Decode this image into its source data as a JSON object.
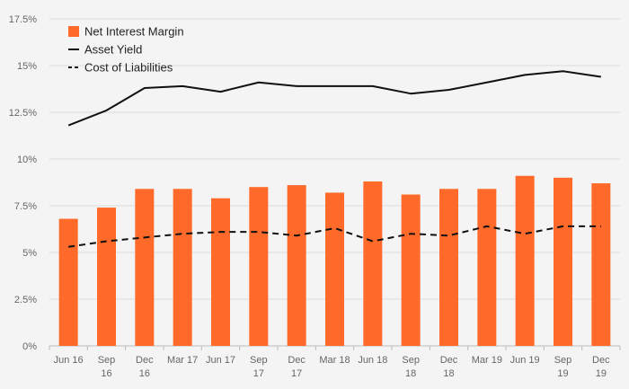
{
  "colors": {
    "background": "#f4f4f4",
    "bar": "#ff6a2a",
    "asset_line": "#111111",
    "liabilities_line": "#111111",
    "grid": "#dcdcdc",
    "tick_text": "#666666",
    "legend_text": "#222222"
  },
  "chart_data": {
    "type": "bar",
    "title": "",
    "xlabel": "",
    "ylabel": "",
    "ylim": [
      0,
      17.5
    ],
    "y_ticks": [
      0,
      2.5,
      5,
      7.5,
      10,
      12.5,
      15,
      17.5
    ],
    "y_tick_labels": [
      "0%",
      "2.5%",
      "5%",
      "7.5%",
      "10%",
      "12.5%",
      "15%",
      "17.5%"
    ],
    "grid": true,
    "legend_position": "top-left",
    "categories": [
      "Jun 16",
      "Sep 16",
      "Dec 16",
      "Mar 17",
      "Jun 17",
      "Sep 17",
      "Dec 17",
      "Mar 18",
      "Jun 18",
      "Sep 18",
      "Dec 18",
      "Mar 19",
      "Jun 19",
      "Sep 19",
      "Dec 19"
    ],
    "category_labels": [
      [
        "Jun 16"
      ],
      [
        "Sep",
        "16"
      ],
      [
        "Dec",
        "16"
      ],
      [
        "Mar 17"
      ],
      [
        "Jun 17"
      ],
      [
        "Sep",
        "17"
      ],
      [
        "Dec",
        "17"
      ],
      [
        "Mar 18"
      ],
      [
        "Jun 18"
      ],
      [
        "Sep",
        "18"
      ],
      [
        "Dec",
        "18"
      ],
      [
        "Mar 19"
      ],
      [
        "Jun 19"
      ],
      [
        "Sep",
        "19"
      ],
      [
        "Dec",
        "19"
      ]
    ],
    "series": [
      {
        "name": "Net Interest Margin",
        "type": "bar",
        "values": [
          6.8,
          7.4,
          8.4,
          8.4,
          7.9,
          8.5,
          8.6,
          8.2,
          8.8,
          8.1,
          8.4,
          8.4,
          9.1,
          9.0,
          8.7
        ]
      },
      {
        "name": "Asset Yield",
        "type": "line",
        "style": "solid",
        "values": [
          11.8,
          12.6,
          13.8,
          13.9,
          13.6,
          14.1,
          13.9,
          13.9,
          13.9,
          13.5,
          13.7,
          14.1,
          14.5,
          14.7,
          14.4
        ]
      },
      {
        "name": "Cost of Liabilities",
        "type": "line",
        "style": "dashed",
        "values": [
          5.3,
          5.6,
          5.8,
          6.0,
          6.1,
          6.1,
          5.9,
          6.3,
          5.6,
          6.0,
          5.9,
          6.4,
          6.0,
          6.4,
          6.4
        ]
      }
    ]
  }
}
